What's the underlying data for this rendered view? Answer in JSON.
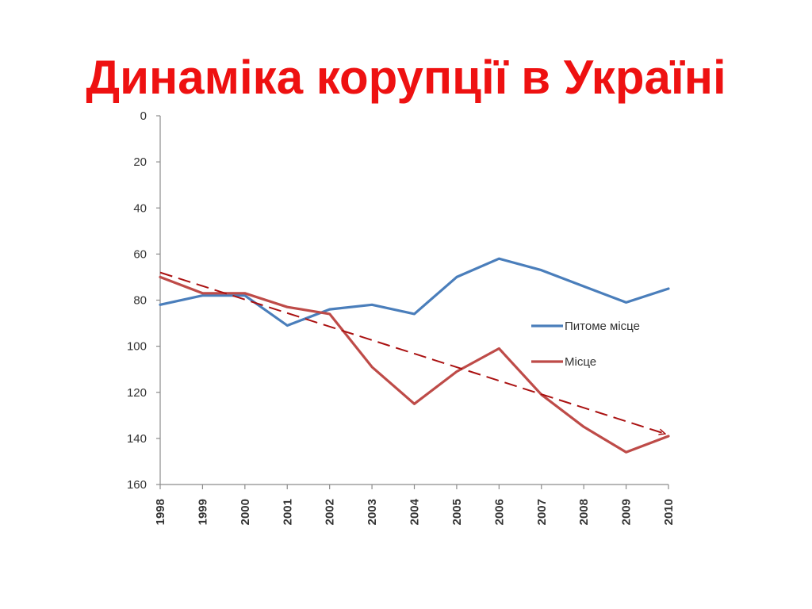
{
  "slide": {
    "title": "Динаміка корупції в Україні"
  },
  "chart_data": {
    "type": "line",
    "x": [
      "1998",
      "1999",
      "2000",
      "2001",
      "2002",
      "2003",
      "2004",
      "2005",
      "2006",
      "2007",
      "2008",
      "2009",
      "2010"
    ],
    "ylim": [
      0,
      160
    ],
    "y_reversed": true,
    "yticks": [
      0,
      20,
      40,
      60,
      80,
      100,
      120,
      140,
      160
    ],
    "grid": false,
    "legend": "right",
    "series": [
      {
        "name": "Питоме місце",
        "color": "#4a7ebb",
        "values": [
          82,
          78,
          78,
          91,
          84,
          82,
          86,
          70,
          62,
          67,
          74,
          81,
          75
        ]
      },
      {
        "name": "Місце",
        "color": "#be4b48",
        "values": [
          70,
          77,
          77,
          83,
          86,
          109,
          125,
          111,
          101,
          121,
          135,
          146,
          139
        ]
      }
    ],
    "trend": {
      "color": "#aa1111",
      "style": "dashed-arrow",
      "from": {
        "x": "1998",
        "y": 68
      },
      "to": {
        "x": "2010",
        "y": 138
      }
    }
  }
}
